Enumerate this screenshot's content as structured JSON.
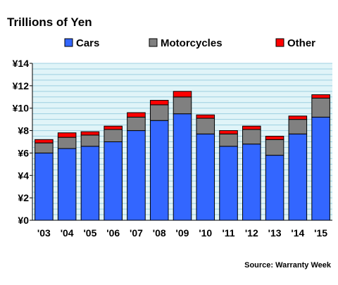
{
  "chart_data": {
    "type": "bar",
    "stacked": true,
    "title": "Trillions of Yen",
    "source": "Source: Warranty Week",
    "categories": [
      "'03",
      "'04",
      "'05",
      "'06",
      "'07",
      "'08",
      "'09",
      "'10",
      "'11",
      "'12",
      "'13",
      "'14",
      "'15"
    ],
    "series": [
      {
        "name": "Cars",
        "color": "#3366ff",
        "values": [
          6.0,
          6.4,
          6.6,
          7.0,
          8.0,
          8.9,
          9.5,
          7.7,
          6.6,
          6.8,
          5.8,
          7.7,
          9.2
        ]
      },
      {
        "name": "Motorcycles",
        "color": "#808080",
        "values": [
          0.9,
          1.0,
          1.0,
          1.1,
          1.2,
          1.4,
          1.5,
          1.4,
          1.1,
          1.3,
          1.4,
          1.3,
          1.7
        ]
      },
      {
        "name": "Other",
        "color": "#ff0000",
        "values": [
          0.3,
          0.4,
          0.3,
          0.3,
          0.4,
          0.4,
          0.5,
          0.3,
          0.3,
          0.3,
          0.3,
          0.3,
          0.3
        ]
      }
    ],
    "ylim": [
      0,
      14
    ],
    "ytick_labels": [
      "¥0",
      "¥2",
      "¥4",
      "¥6",
      "¥8",
      "¥10",
      "¥12",
      "¥14"
    ],
    "ytick_values": [
      0,
      2,
      4,
      6,
      8,
      10,
      12,
      14
    ],
    "minor_grid_step": 0.5,
    "grid": true,
    "legend_position": "top",
    "plot_background": "#e0f4f8",
    "grid_color": "#9ccfe0"
  }
}
